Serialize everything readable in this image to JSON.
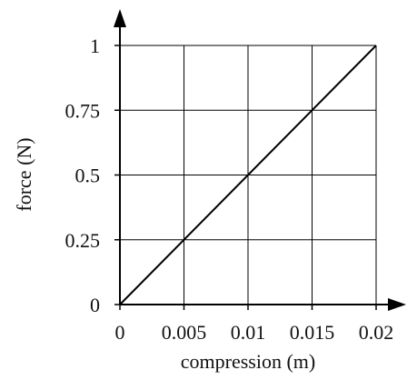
{
  "chart_data": {
    "type": "line",
    "title": "",
    "xlabel": "compression (m)",
    "ylabel": "force (N)",
    "xlim": [
      0,
      0.02
    ],
    "ylim": [
      0,
      1
    ],
    "x_ticks": [
      0,
      0.005,
      0.01,
      0.015,
      0.02
    ],
    "y_ticks": [
      0,
      0.25,
      0.5,
      0.75,
      1
    ],
    "x_tick_labels": [
      "0",
      "0.005",
      "0.01",
      "0.015",
      "0.02"
    ],
    "y_tick_labels": [
      "0",
      "0.25",
      "0.5",
      "0.75",
      "1"
    ],
    "grid": true,
    "series": [
      {
        "x": [
          0,
          0.02
        ],
        "y": [
          0,
          1
        ]
      }
    ]
  }
}
